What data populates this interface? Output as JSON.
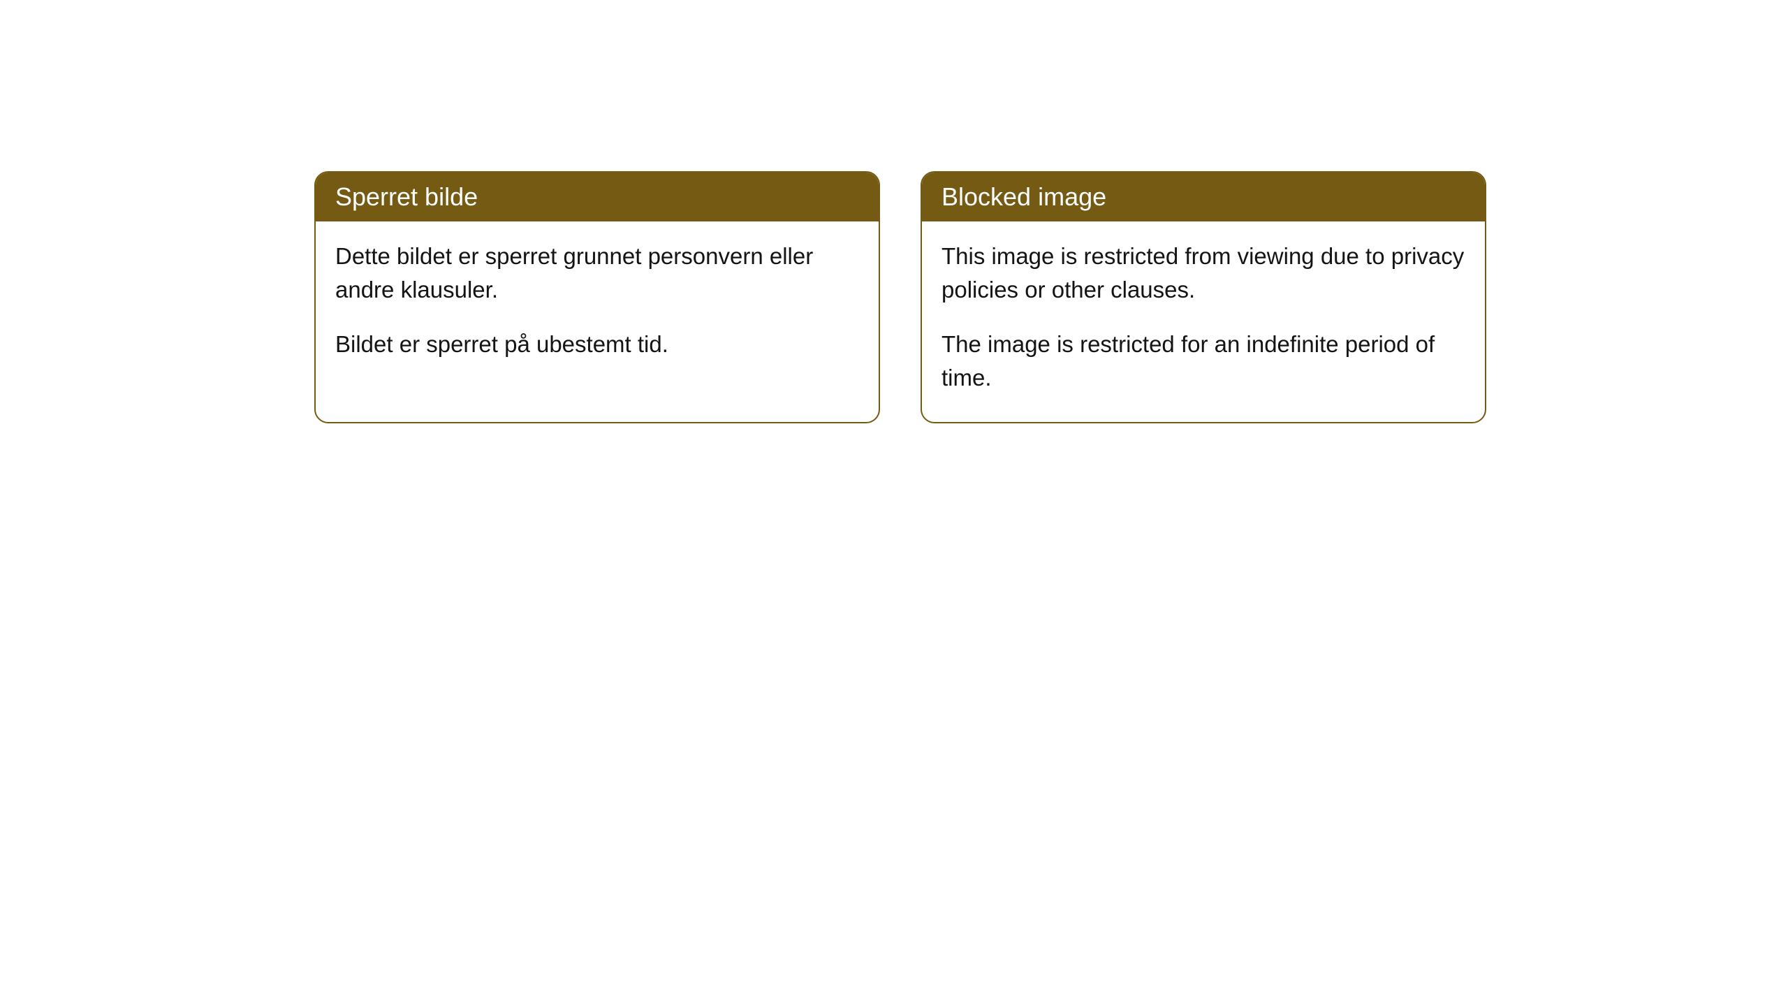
{
  "cards": [
    {
      "title": "Sperret bilde",
      "paragraph1": "Dette bildet er sperret grunnet personvern eller andre klausuler.",
      "paragraph2": "Bildet er sperret på ubestemt tid."
    },
    {
      "title": "Blocked image",
      "paragraph1": "This image is restricted from viewing due to privacy policies or other clauses.",
      "paragraph2": "The image is restricted for an indefinite period of time."
    }
  ],
  "style": {
    "header_background": "#745a13",
    "header_text_color": "#ffffff",
    "border_color": "#745a13",
    "body_background": "#ffffff",
    "body_text_color": "#141414",
    "border_radius": 20,
    "header_fontsize": 36,
    "body_fontsize": 33
  }
}
